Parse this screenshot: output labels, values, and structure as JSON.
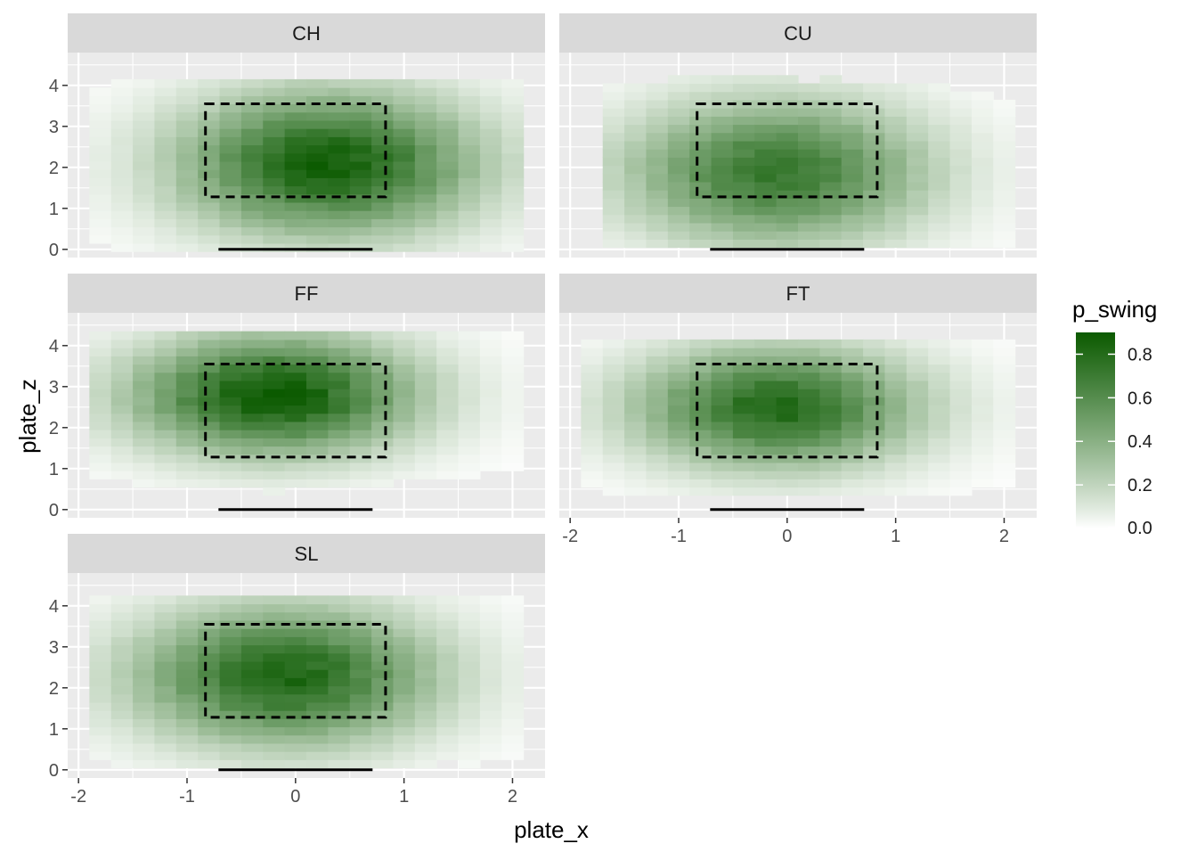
{
  "chart_data": {
    "type": "heatmap",
    "facet_variable": "pitch_type",
    "xlabel": "plate_x",
    "ylabel": "plate_z",
    "fill_label": "p_swing",
    "xlim": [
      -2.1,
      2.3
    ],
    "ylim": [
      -0.2,
      4.8
    ],
    "x_ticks": [
      -2,
      -1,
      0,
      1,
      2
    ],
    "y_ticks": [
      0,
      1,
      2,
      3,
      4
    ],
    "fill_range": [
      0,
      0.9
    ],
    "legend_ticks": [
      0.0,
      0.2,
      0.4,
      0.6,
      0.8
    ],
    "legend_tick_labels": [
      "0.0",
      "0.2",
      "0.4",
      "0.6",
      "0.8"
    ],
    "legend_position": "right",
    "grid": true,
    "colors": {
      "low": "#ffffff",
      "high": "#0b5a00",
      "panel_bg": "#ebebeb",
      "strip_bg": "#d9d9d9",
      "grid": "#ffffff"
    },
    "strike_zone": {
      "x": [
        -0.83,
        0.83
      ],
      "z": [
        1.28,
        3.55
      ],
      "style": "dashed"
    },
    "home_plate": {
      "x": [
        -0.71,
        0.71
      ],
      "z": 0
    },
    "tile_size": {
      "dx": 0.2,
      "dz": 0.2
    },
    "facets": [
      {
        "label": "CH",
        "peak": 0.86,
        "cx": 0.3,
        "cz": 2.1,
        "sx": 0.95,
        "sz": 1.2,
        "bx": 3.7,
        "bz": 2.4,
        "xr": [
          -1.9,
          2.1
        ],
        "zr": [
          -0.05,
          4.15
        ]
      },
      {
        "label": "CU",
        "peak": 0.72,
        "cx": -0.1,
        "cz": 1.9,
        "sx": 0.95,
        "sz": 1.2,
        "bx": 3.7,
        "bz": 2.3,
        "xr": [
          -1.7,
          2.1
        ],
        "zr": [
          0.05,
          4.15
        ]
      },
      {
        "label": "FF",
        "peak": 0.9,
        "cx": -0.2,
        "cz": 2.8,
        "sx": 0.9,
        "sz": 1.0,
        "bx": 3.7,
        "bz": 2.3,
        "xr": [
          -1.9,
          2.1
        ],
        "zr": [
          0.35,
          4.25
        ]
      },
      {
        "label": "FT",
        "peak": 0.8,
        "cx": -0.1,
        "cz": 2.5,
        "sx": 0.9,
        "sz": 1.0,
        "bx": 3.8,
        "bz": 2.3,
        "xr": [
          -1.9,
          2.1
        ],
        "zr": [
          0.35,
          4.15
        ]
      },
      {
        "label": "SL",
        "peak": 0.82,
        "cx": -0.1,
        "cz": 2.3,
        "sx": 0.95,
        "sz": 1.15,
        "bx": 3.7,
        "bz": 2.4,
        "xr": [
          -1.9,
          2.1
        ],
        "zr": [
          0.05,
          4.25
        ]
      }
    ]
  }
}
